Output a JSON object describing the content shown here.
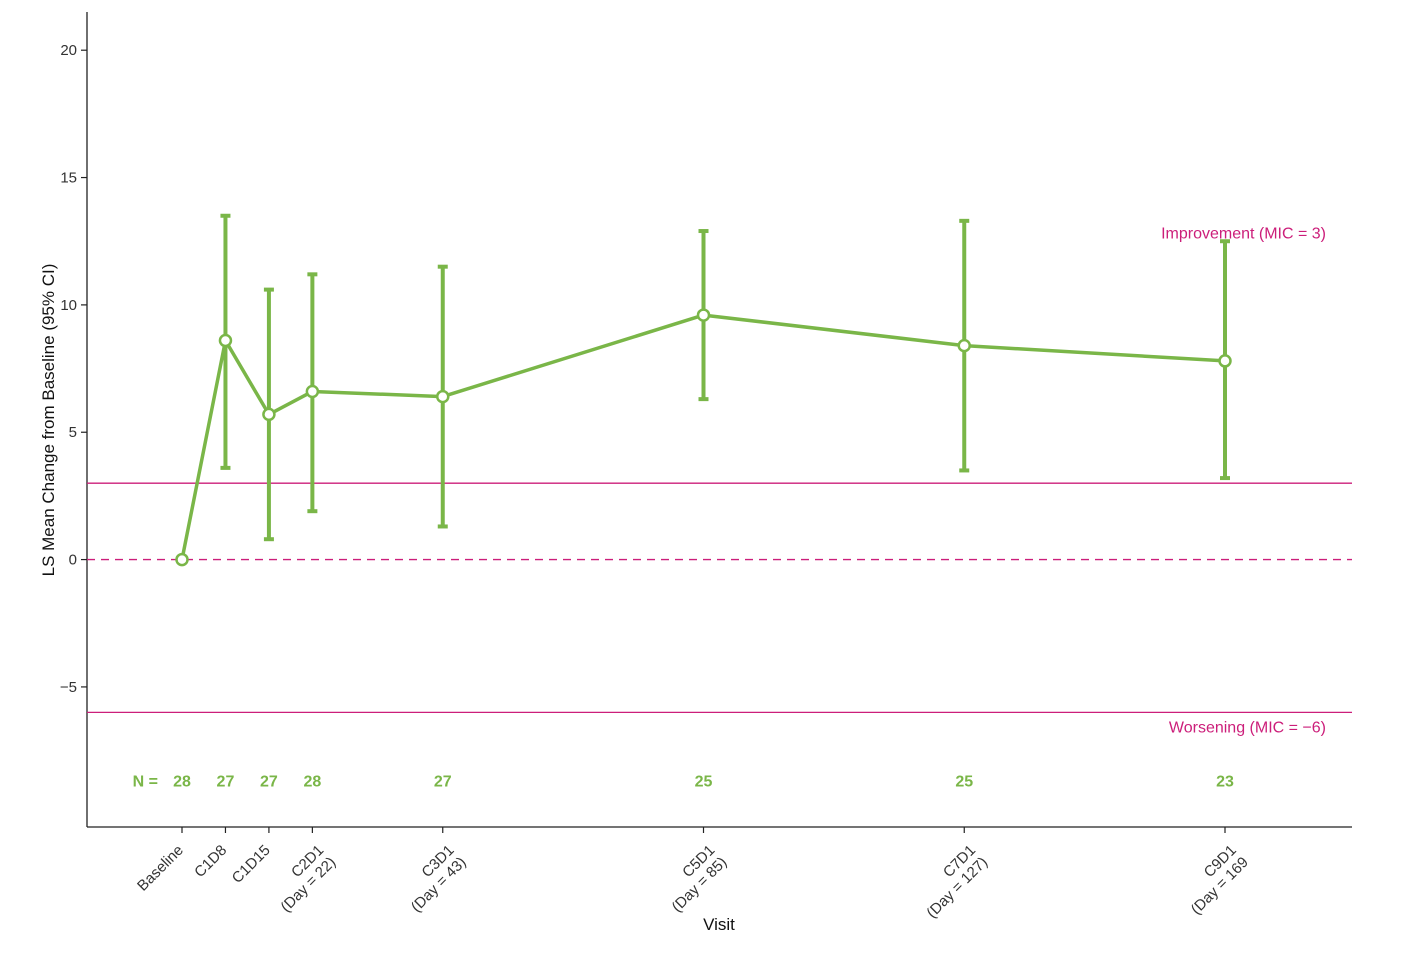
{
  "chart_data": {
    "type": "line",
    "title": "",
    "xlabel": "Visit",
    "ylabel": "LS Mean Change from Baseline (95% CI)",
    "ylim": [
      -10.5,
      21.5
    ],
    "yticks": [
      -5,
      0,
      5,
      10,
      15,
      20
    ],
    "ytick_labels": [
      "−5",
      "0",
      "5",
      "10",
      "15",
      "20"
    ],
    "grid": false,
    "legend": "none",
    "categories": [
      [
        "Baseline"
      ],
      [
        "C1D8"
      ],
      [
        "C1D15"
      ],
      [
        "C2D1",
        "(Day = 22)"
      ],
      [
        "C3D1",
        "(Day = 43)"
      ],
      [
        "C5D1",
        "(Day = 85)"
      ],
      [
        "C7D1",
        "(Day = 127)"
      ],
      [
        "C9D1",
        "(Day = 169"
      ]
    ],
    "x_study_day": [
      1,
      8,
      15,
      22,
      43,
      85,
      127,
      169
    ],
    "series": [
      {
        "values": [
          0,
          8.6,
          5.7,
          6.6,
          6.4,
          9.6,
          8.4,
          7.8
        ],
        "ci_lower": [
          null,
          3.6,
          0.8,
          1.9,
          1.3,
          6.3,
          3.5,
          3.2
        ],
        "ci_upper": [
          null,
          13.5,
          10.6,
          11.2,
          11.5,
          12.9,
          13.3,
          12.5
        ],
        "color": "#7ab648"
      }
    ],
    "reference_lines": [
      {
        "y": 3,
        "style": "solid",
        "label": "Improvement (MIC = 3)",
        "label_position": "above-right"
      },
      {
        "y": -6,
        "style": "solid",
        "label": "Worsening (MIC = −6)",
        "label_position": "below-right"
      },
      {
        "y": 0,
        "style": "dashed",
        "label": ""
      }
    ],
    "reference_color": "#cc1e7a",
    "n_prefix": "N =",
    "n_values": [
      "28",
      "27",
      "27",
      "28",
      "27",
      "25",
      "25",
      "23"
    ]
  }
}
